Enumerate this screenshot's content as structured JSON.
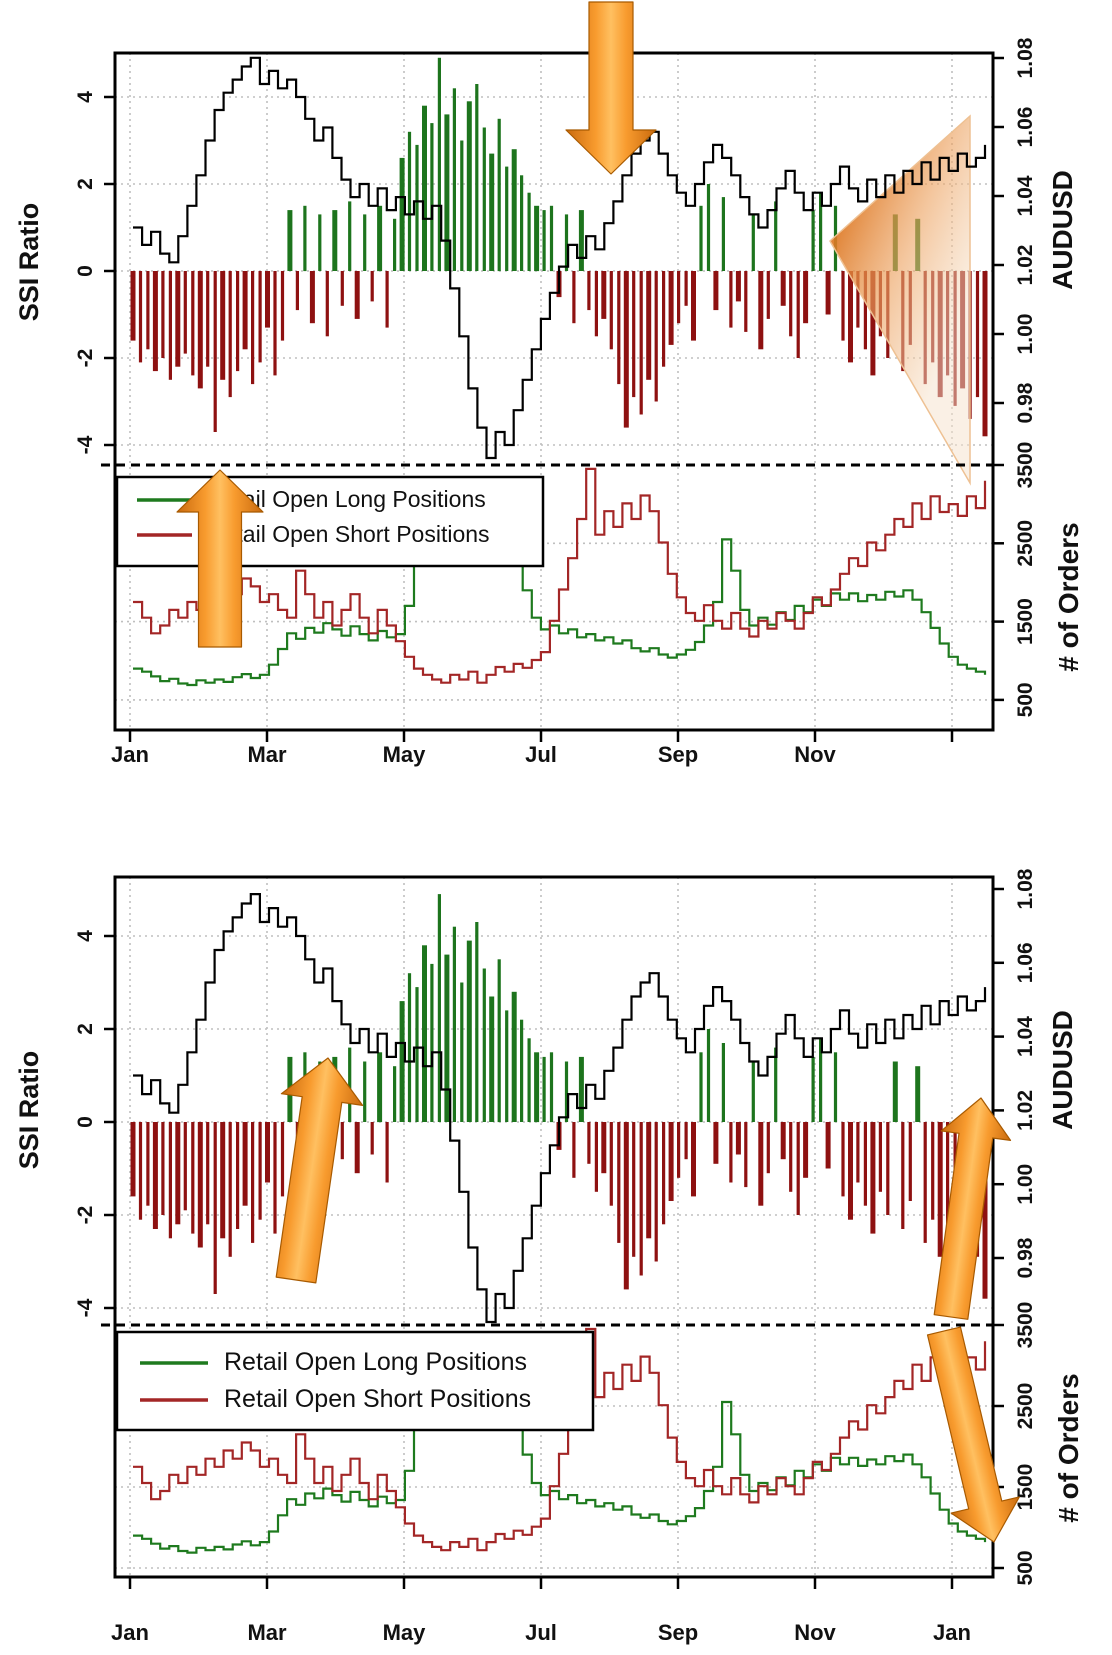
{
  "page": {
    "background": "#ffffff"
  },
  "chart_data": {
    "type": "bar+line combo, two stacked panels (SSI bars with price overlay; order-count lines), chart repeated twice with different annotations",
    "title": "",
    "x_axis": {
      "tick_labels_chart1": [
        "Jan",
        "Mar",
        "May",
        "Jul",
        "Sep",
        "Nov"
      ],
      "tick_labels_chart2": [
        "Jan",
        "Mar",
        "May",
        "Jul",
        "Sep",
        "Nov",
        "Jan"
      ]
    },
    "y_axis_left": {
      "label": "SSI Ratio",
      "ticks": [
        "4",
        "2",
        "0",
        "-2",
        "-4"
      ],
      "range": [
        -4.8,
        5.0
      ]
    },
    "y_axis_right_price": {
      "label": "AUDUSD",
      "ticks": [
        "1.08",
        "1.06",
        "1.04",
        "1.02",
        "1.00",
        "0.98"
      ]
    },
    "y_axis_right_orders": {
      "label": "# of Orders",
      "ticks": [
        "3500",
        "2500",
        "1500",
        "500"
      ],
      "range": [
        200,
        3500
      ]
    },
    "legend": {
      "items": [
        {
          "label": "Retail Open Long Positions",
          "color": "#1e7a1e"
        },
        {
          "label": "Retail Open Short Positions",
          "color": "#a32626"
        }
      ]
    },
    "grid": "dotted light-gray at month ticks and value gridlines",
    "series": {
      "ssi_ratio_bars": {
        "color_positive": "#1d741d",
        "color_negative": "#8e1111",
        "values": [
          -1.6,
          -2.1,
          -1.8,
          -2.3,
          -2.0,
          -2.5,
          -2.2,
          -1.9,
          -2.4,
          -2.7,
          -2.2,
          -3.7,
          -2.5,
          -2.9,
          -2.3,
          -1.8,
          -2.6,
          -2.1,
          -1.3,
          -2.4,
          -1.6,
          1.4,
          -0.9,
          1.5,
          -1.2,
          1.3,
          -1.5,
          1.4,
          -0.8,
          1.6,
          -1.1,
          1.3,
          -0.7,
          1.5,
          -1.3,
          1.2,
          2.6,
          3.2,
          2.9,
          3.8,
          3.4,
          4.9,
          3.6,
          4.2,
          3.0,
          3.9,
          4.3,
          3.3,
          2.7,
          3.5,
          2.4,
          2.8,
          2.2,
          1.8,
          1.5,
          1.4,
          1.5,
          -0.6,
          1.3,
          -1.2,
          1.4,
          -0.9,
          -1.5,
          -1.1,
          -1.8,
          -2.6,
          -3.6,
          -2.9,
          -3.3,
          -2.5,
          -3.0,
          -2.2,
          -1.7,
          -1.2,
          -0.8,
          -1.6,
          1.5,
          2.0,
          -0.9,
          1.7,
          -1.3,
          -0.7,
          -1.4,
          1.3,
          -1.8,
          -1.1,
          1.6,
          -0.8,
          -1.5,
          -2.0,
          -1.2,
          1.4,
          1.8,
          -1.0,
          1.5,
          -1.6,
          -2.1,
          -1.3,
          -1.8,
          -2.4,
          -1.5,
          -2.0,
          1.3,
          -2.3,
          -1.7,
          1.2,
          -2.6,
          -2.1,
          -2.9,
          -2.4,
          -3.1,
          -2.7,
          -3.4,
          -2.9,
          -3.8
        ]
      },
      "audusd_price": {
        "color": "#000000",
        "units": "plotted on SSI axis scale",
        "values": [
          1.0,
          0.6,
          0.9,
          0.4,
          0.2,
          0.8,
          1.5,
          2.2,
          3.0,
          3.7,
          4.1,
          4.4,
          4.7,
          4.9,
          4.3,
          4.6,
          4.2,
          4.4,
          4.0,
          3.5,
          3.0,
          3.3,
          2.6,
          2.1,
          1.7,
          2.0,
          1.5,
          1.9,
          1.4,
          1.7,
          1.3,
          1.6,
          1.2,
          1.5,
          0.7,
          -0.4,
          -1.5,
          -2.7,
          -3.6,
          -4.3,
          -3.7,
          -4.0,
          -3.2,
          -2.5,
          -1.8,
          -1.1,
          -0.5,
          0.1,
          0.6,
          0.3,
          0.8,
          0.5,
          1.1,
          1.6,
          2.2,
          2.7,
          3.0,
          3.2,
          2.7,
          2.2,
          1.8,
          1.5,
          2.0,
          2.5,
          2.9,
          2.6,
          2.2,
          1.7,
          1.3,
          1.0,
          1.4,
          1.9,
          2.3,
          1.8,
          1.4,
          1.8,
          1.5,
          2.0,
          2.4,
          1.9,
          1.6,
          2.1,
          1.7,
          2.2,
          1.8,
          2.3,
          2.0,
          2.5,
          2.1,
          2.6,
          2.3,
          2.7,
          2.4,
          2.6,
          2.9
        ]
      },
      "retail_long_orders": {
        "color": "#1e7a1e",
        "values": [
          900,
          860,
          800,
          740,
          770,
          710,
          690,
          750,
          720,
          760,
          730,
          790,
          830,
          780,
          820,
          950,
          1150,
          1350,
          1280,
          1420,
          1360,
          1480,
          1400,
          1320,
          1440,
          1340,
          1260,
          1380,
          1300,
          1340,
          1700,
          2300,
          2550,
          2650,
          2600,
          2700,
          2560,
          2680,
          2600,
          2720,
          2580,
          2500,
          2300,
          1900,
          1550,
          1400,
          1450,
          1350,
          1400,
          1300,
          1340,
          1260,
          1300,
          1220,
          1260,
          1160,
          1120,
          1160,
          1080,
          1040,
          1080,
          1140,
          1240,
          1450,
          1750,
          2550,
          2150,
          1650,
          1450,
          1550,
          1460,
          1620,
          1520,
          1700,
          1620,
          1780,
          1700,
          1860,
          1780,
          1860,
          1760,
          1840,
          1780,
          1880,
          1820,
          1900,
          1780,
          1620,
          1420,
          1220,
          1050,
          950,
          900,
          860,
          820
        ]
      },
      "retail_short_orders": {
        "color": "#a32626",
        "values": [
          1750,
          1550,
          1350,
          1450,
          1650,
          1550,
          1750,
          1650,
          1850,
          1750,
          1950,
          1850,
          2050,
          1950,
          1750,
          1850,
          1650,
          1550,
          2150,
          1850,
          1550,
          1750,
          1450,
          1650,
          1850,
          1550,
          1350,
          1650,
          1450,
          1250,
          1050,
          900,
          820,
          760,
          720,
          820,
          760,
          860,
          720,
          820,
          920,
          860,
          960,
          910,
          1010,
          1110,
          1510,
          1910,
          2310,
          2810,
          3450,
          2610,
          2910,
          2710,
          3010,
          2810,
          3110,
          2910,
          2510,
          2110,
          1810,
          1610,
          1510,
          1710,
          1510,
          1410,
          1610,
          1410,
          1310,
          1510,
          1410,
          1610,
          1510,
          1410,
          1610,
          1810,
          1710,
          1910,
          2110,
          2310,
          2210,
          2510,
          2410,
          2610,
          2810,
          2710,
          3010,
          2810,
          3100,
          2900,
          3000,
          2850,
          3100,
          2950,
          3300
        ]
      }
    }
  },
  "annotations": {
    "arrow_colors": {
      "fill_dark": "#c96a0e",
      "fill_mid": "#f89b2e",
      "fill_light": "#ffc061",
      "stroke": "#a85a00"
    },
    "pennant_colors": {
      "apex": "#dd7722",
      "mid": "#eda463",
      "edge": "#f6e2cb"
    },
    "chart1": {
      "arrows": [
        {
          "id": "big-down-arrow",
          "base": [
            611,
            2
          ],
          "tip": [
            611,
            174
          ],
          "shaft_w": 44,
          "head_w": 90,
          "head_l": 44
        },
        {
          "id": "up-arrow-over-legend",
          "base": [
            220,
            647
          ],
          "tip": [
            220,
            470
          ],
          "shaft_w": 43,
          "head_w": 86,
          "head_l": 42
        }
      ],
      "pennant": {
        "id": "consolidation-pennant",
        "points": [
          [
            830,
            241
          ],
          [
            970,
            116
          ],
          [
            970,
            483
          ]
        ]
      }
    },
    "chart2": {
      "arrows": [
        {
          "id": "up-arrow-march",
          "base": [
            296,
            1280
          ],
          "tip": [
            328,
            1058
          ],
          "shaft_w": 40,
          "head_w": 82,
          "head_l": 42
        },
        {
          "id": "up-right-arrow",
          "base": [
            951,
            1317
          ],
          "tip": [
            981,
            1098
          ],
          "shaft_w": 34,
          "head_w": 70,
          "head_l": 38
        },
        {
          "id": "down-right-arrow",
          "base": [
            944,
            1331
          ],
          "tip": [
            994,
            1542
          ],
          "shaft_w": 34,
          "head_w": 70,
          "head_l": 38
        }
      ],
      "pennant": null
    }
  }
}
